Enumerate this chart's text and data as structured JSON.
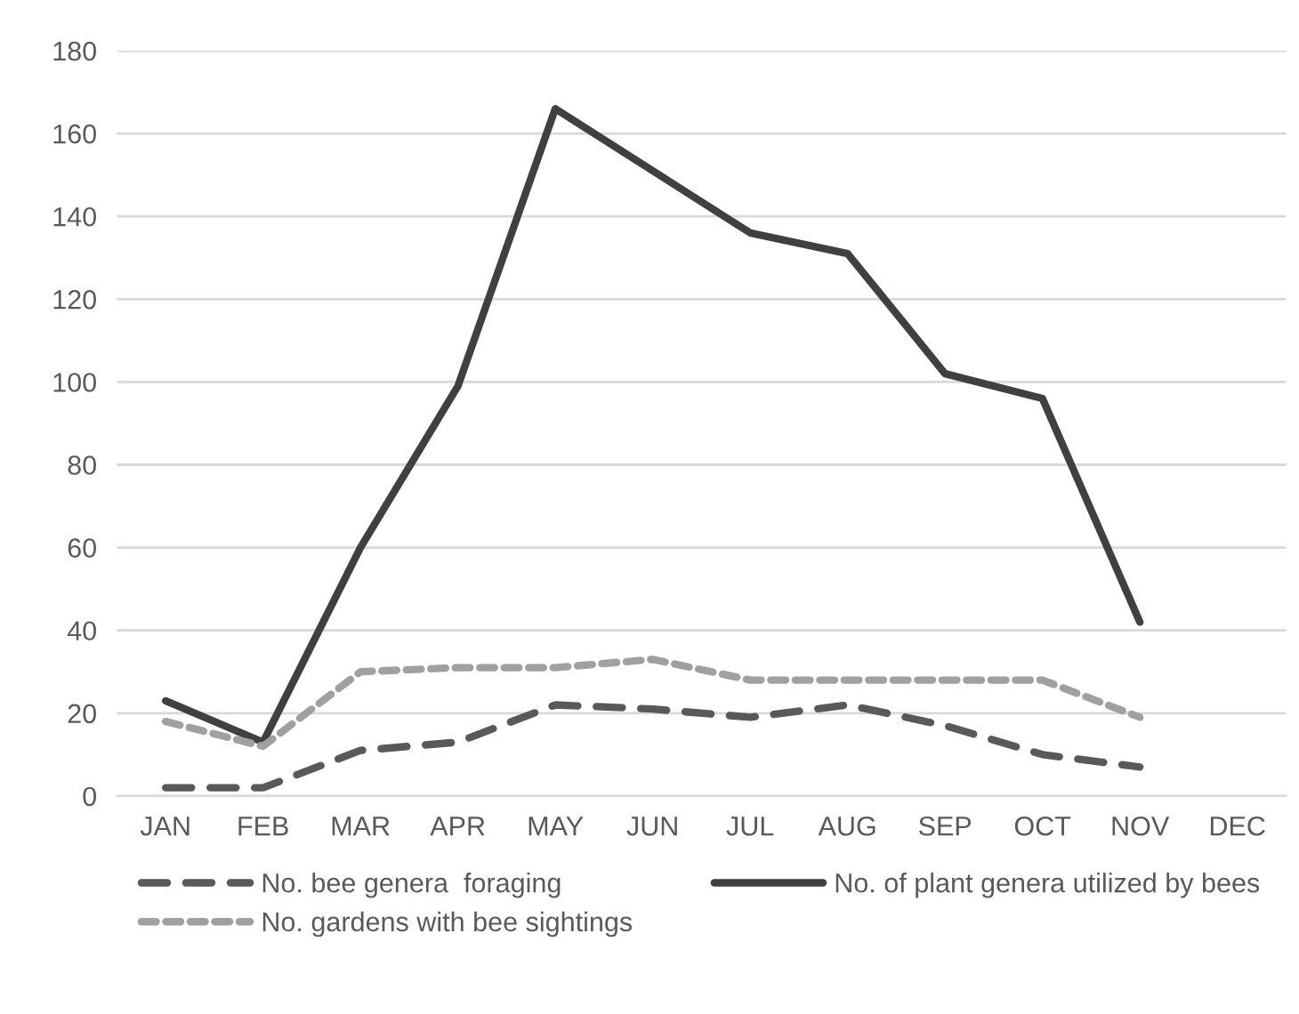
{
  "chart_data": {
    "type": "line",
    "categories": [
      "JAN",
      "FEB",
      "MAR",
      "APR",
      "MAY",
      "JUN",
      "JUL",
      "AUG",
      "SEP",
      "OCT",
      "NOV",
      "DEC"
    ],
    "series": [
      {
        "name": "No. bee genera  foraging",
        "color": "#595959",
        "line_style": "dashed",
        "values": [
          2,
          2,
          11,
          13,
          22,
          21,
          19,
          22,
          17,
          10,
          7,
          null
        ]
      },
      {
        "name": "No. of plant genera utilized by bees",
        "color": "#404040",
        "line_style": "solid",
        "values": [
          23,
          13,
          60,
          99,
          166,
          151,
          136,
          131,
          102,
          96,
          42,
          null
        ]
      },
      {
        "name": "No. gardens with bee sightings",
        "color": "#a0a0a0",
        "line_style": "dotted",
        "values": [
          18,
          12,
          30,
          31,
          31,
          33,
          28,
          28,
          28,
          28,
          19,
          null
        ]
      }
    ],
    "ylim": [
      0,
      180
    ],
    "yticks": [
      0,
      20,
      40,
      60,
      80,
      100,
      120,
      140,
      160,
      180
    ],
    "grid": "y",
    "legend": "bottom",
    "marker": "none"
  }
}
